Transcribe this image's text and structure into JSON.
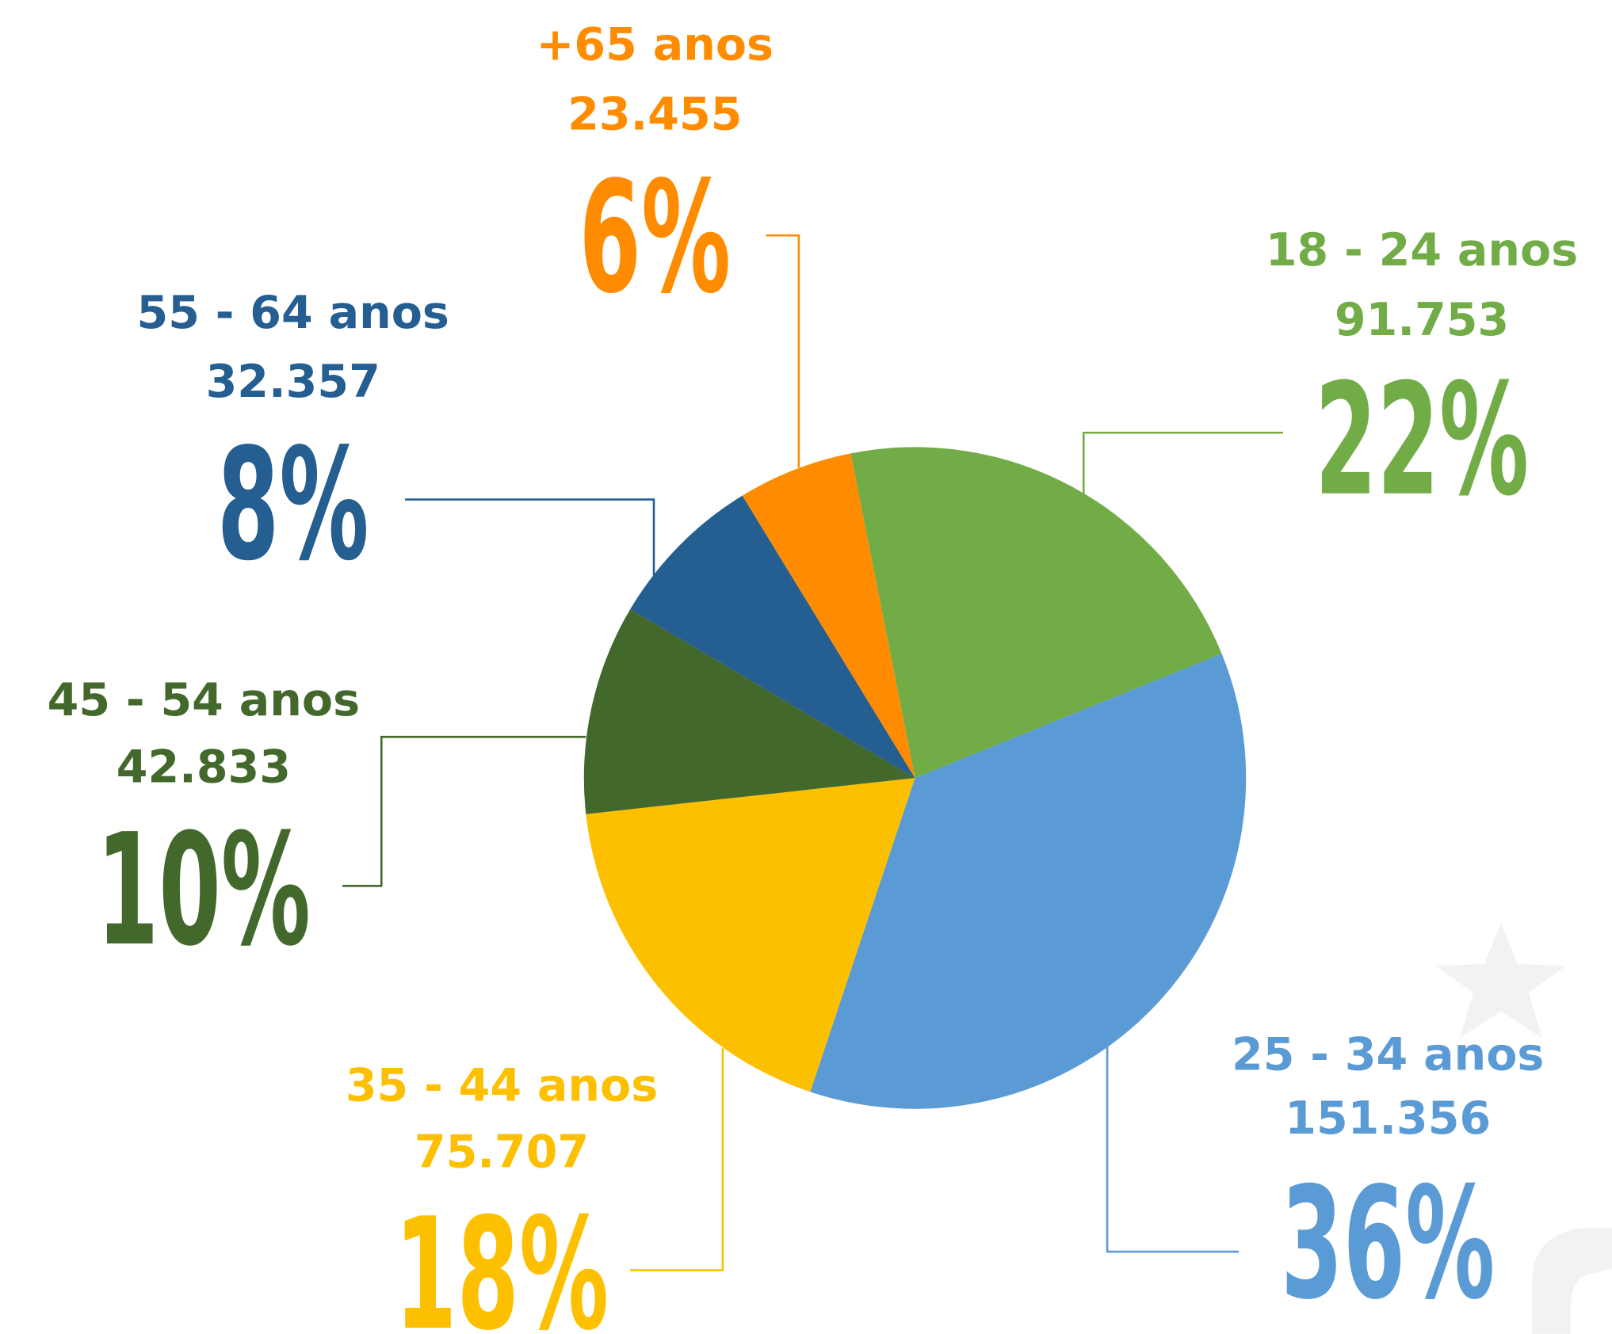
{
  "chart_data": {
    "type": "pie",
    "categories": [
      "18 - 24 anos",
      "25 - 34 anos",
      "35 - 44 anos",
      "45 - 54 anos",
      "55 - 64 anos",
      "+65 anos"
    ],
    "values": [
      91753,
      151356,
      75707,
      42833,
      32357,
      23455
    ],
    "value_labels": [
      "91.753",
      "151.356",
      "75.707",
      "42.833",
      "32.357",
      "23.455"
    ],
    "percent_labels": [
      "22%",
      "36%",
      "18%",
      "10%",
      "8%",
      "6%"
    ],
    "colors": [
      "#72ac47",
      "#5b9bd5",
      "#fdc000",
      "#43682b",
      "#255e91",
      "#ff8c00"
    ]
  }
}
